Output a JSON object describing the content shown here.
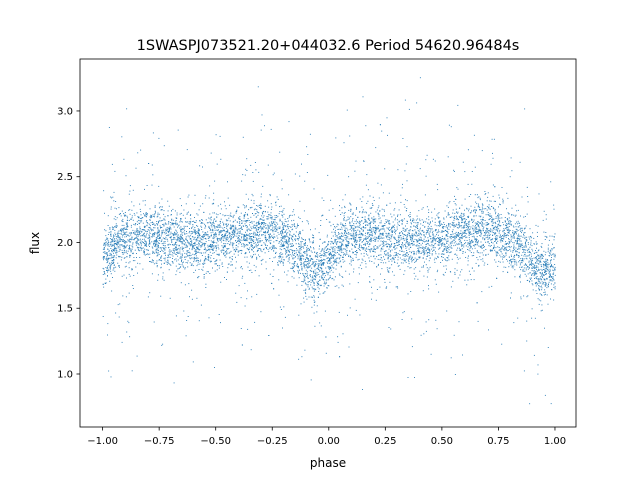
{
  "chart_data": {
    "type": "scatter",
    "title": "1SWASPJ073521.20+044032.6 Period 54620.96484s",
    "xlabel": "phase",
    "ylabel": "flux",
    "xlim": [
      -1.1,
      1.093
    ],
    "ylim": [
      0.597,
      3.395
    ],
    "xticks": [
      -1.0,
      -0.75,
      -0.5,
      -0.25,
      0.0,
      0.25,
      0.5,
      0.75,
      1.0
    ],
    "xtick_labels": [
      "−1.00",
      "−0.75",
      "−0.50",
      "−0.25",
      "0.00",
      "0.25",
      "0.50",
      "0.75",
      "1.00"
    ],
    "yticks": [
      1.0,
      1.5,
      2.0,
      2.5,
      3.0
    ],
    "ytick_labels": [
      "1.0",
      "1.5",
      "2.0",
      "2.5",
      "3.0"
    ],
    "grid": false,
    "marker_color": "#1f77b4",
    "phase_range": [
      -1.0,
      1.0
    ],
    "flux_range": [
      0.72,
      3.27
    ],
    "mean_flux_curve": {
      "phase": [
        0.0,
        0.05,
        0.1,
        0.2,
        0.3,
        0.45,
        0.55,
        0.7,
        0.8,
        0.85,
        0.9,
        0.95,
        1.0
      ],
      "flux": [
        1.85,
        2.0,
        2.04,
        2.06,
        2.03,
        2.0,
        2.04,
        2.1,
        2.03,
        1.97,
        1.85,
        1.78,
        1.85
      ]
    }
  }
}
